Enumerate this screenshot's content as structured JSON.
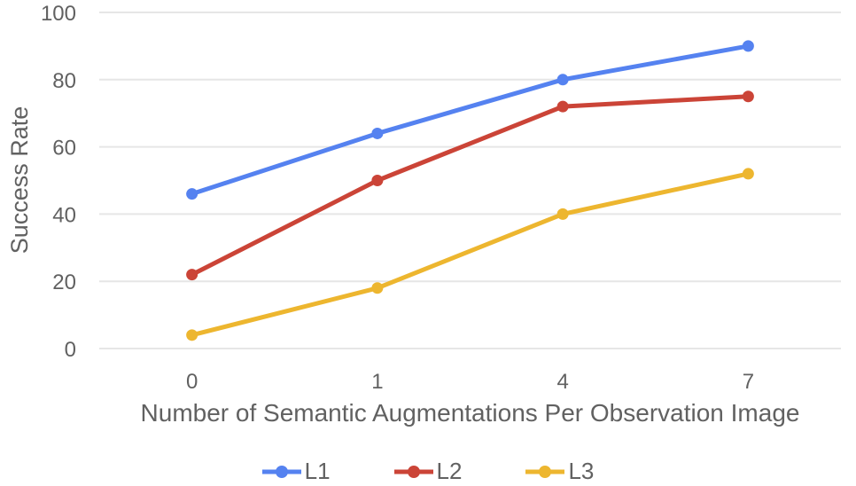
{
  "chart_data": {
    "type": "line",
    "title": "",
    "xlabel": "Number of Semantic Augmentations Per Observation Image",
    "ylabel": "Success Rate",
    "categories": [
      "0",
      "1",
      "4",
      "7"
    ],
    "series": [
      {
        "name": "L1",
        "color": "#5582F0",
        "values": [
          46,
          64,
          80,
          90
        ]
      },
      {
        "name": "L2",
        "color": "#CB4437",
        "values": [
          22,
          50,
          72,
          75
        ]
      },
      {
        "name": "L3",
        "color": "#EDB62F",
        "values": [
          4,
          18,
          40,
          52
        ]
      }
    ],
    "y_ticks": [
      0,
      20,
      40,
      60,
      80,
      100
    ],
    "ylim": [
      0,
      100
    ],
    "grid": "horizontal",
    "legend_position": "bottom",
    "style": {
      "grid_color": "#e6e6e6",
      "text_color": "#616161",
      "background": "#ffffff"
    }
  }
}
